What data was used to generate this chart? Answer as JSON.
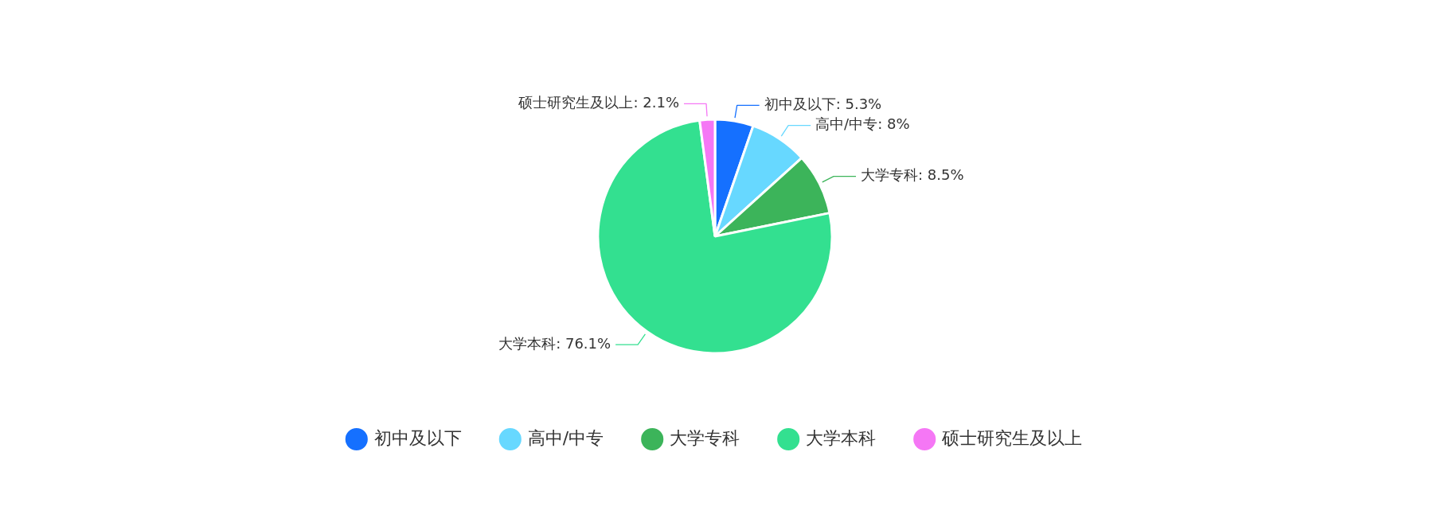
{
  "chart_data": {
    "type": "pie",
    "categories": [
      "初中及以下",
      "高中/中专",
      "大学专科",
      "大学本科",
      "硕士研究生及以上"
    ],
    "values": [
      5.3,
      8,
      8.5,
      76.1,
      2.1
    ],
    "value_labels": [
      "初中及以下: 5.3%",
      "高中/中专: 8%",
      "大学专科: 8.5%",
      "大学本科: 76.1%",
      "硕士研究生及以上: 2.1%"
    ],
    "colors": [
      "#1570ff",
      "#67d8ff",
      "#3cb45a",
      "#33e090",
      "#f577f5"
    ],
    "legend": "bottom"
  }
}
